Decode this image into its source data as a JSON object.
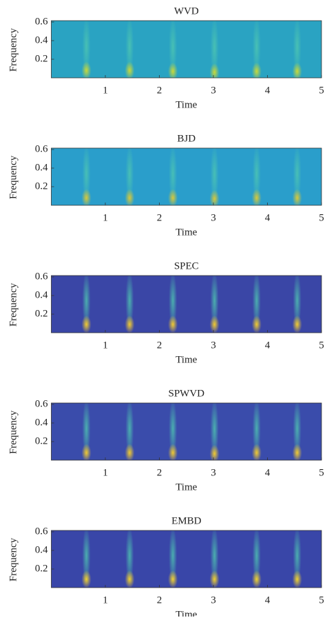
{
  "chart_data": [
    {
      "type": "heatmap",
      "title": "WVD",
      "xlabel": "Time",
      "ylabel": "Frequency",
      "xlim": [
        0,
        5
      ],
      "ylim": [
        0,
        0.6
      ],
      "xticks": [
        1,
        2,
        3,
        4,
        5
      ],
      "yticks": [
        0.2,
        0.4,
        0.6
      ],
      "x": [
        0.65,
        1.45,
        2.25,
        3.02,
        3.8,
        4.55
      ],
      "values": [
        0.08,
        0.08,
        0.07,
        0.06,
        0.07,
        0.07
      ],
      "color": "#2aa3c2",
      "peak_color": "#c8d83a"
    },
    {
      "type": "heatmap",
      "title": "BJD",
      "xlabel": "Time",
      "ylabel": "Frequency",
      "xlim": [
        0,
        5
      ],
      "ylim": [
        0,
        0.6
      ],
      "xticks": [
        1,
        2,
        3,
        4,
        5
      ],
      "yticks": [
        0.2,
        0.4,
        0.6
      ],
      "x": [
        0.65,
        1.45,
        2.25,
        3.02,
        3.8,
        4.55
      ],
      "values": [
        0.08,
        0.08,
        0.08,
        0.07,
        0.08,
        0.08
      ],
      "color": "#2a9ecb",
      "peak_color": "#d6c83a"
    },
    {
      "type": "heatmap",
      "title": "SPEC",
      "xlabel": "Time",
      "ylabel": "Frequency",
      "xlim": [
        0,
        5
      ],
      "ylim": [
        0,
        0.6
      ],
      "xticks": [
        1,
        2,
        3,
        4,
        5
      ],
      "yticks": [
        0.2,
        0.4,
        0.6
      ],
      "x": [
        0.65,
        1.45,
        2.25,
        3.02,
        3.8,
        4.55
      ],
      "values": [
        0.09,
        0.09,
        0.09,
        0.09,
        0.09,
        0.09
      ],
      "color": "#3a46a6",
      "peak_color": "#f0c832"
    },
    {
      "type": "heatmap",
      "title": "SPWVD",
      "xlabel": "Time",
      "ylabel": "Frequency",
      "xlim": [
        0,
        5
      ],
      "ylim": [
        0,
        0.6
      ],
      "xticks": [
        1,
        2,
        3,
        4,
        5
      ],
      "yticks": [
        0.2,
        0.4,
        0.6
      ],
      "x": [
        0.65,
        1.45,
        2.25,
        3.02,
        3.8,
        4.55
      ],
      "values": [
        0.08,
        0.08,
        0.08,
        0.07,
        0.08,
        0.08
      ],
      "color": "#3a4cab",
      "peak_color": "#f0c832"
    },
    {
      "type": "heatmap",
      "title": "EMBD",
      "xlabel": "Time",
      "ylabel": "Frequency",
      "xlim": [
        0,
        5
      ],
      "ylim": [
        0,
        0.6
      ],
      "xticks": [
        1,
        2,
        3,
        4,
        5
      ],
      "yticks": [
        0.2,
        0.4,
        0.6
      ],
      "x": [
        0.65,
        1.45,
        2.25,
        3.02,
        3.8,
        4.55
      ],
      "values": [
        0.09,
        0.09,
        0.09,
        0.09,
        0.09,
        0.09
      ],
      "color": "#3946a8",
      "peak_color": "#f0d030"
    }
  ]
}
